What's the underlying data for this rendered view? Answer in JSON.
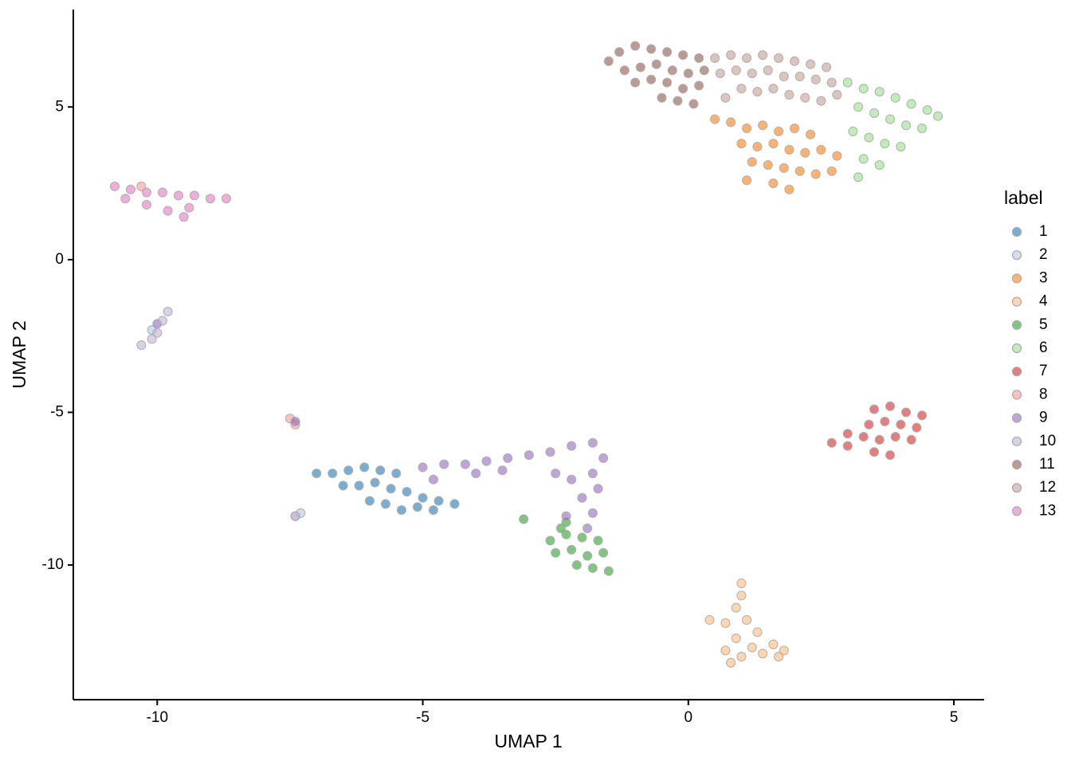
{
  "chart_data": {
    "type": "scatter",
    "xlabel": "UMAP 1",
    "ylabel": "UMAP 2",
    "legend_title": "label",
    "legend_position": "right",
    "xlim": [
      -11.58,
      5.57
    ],
    "ylim": [
      -14.41,
      8.19
    ],
    "xticks": [
      -10,
      -5,
      0,
      5
    ],
    "yticks": [
      -10,
      -5,
      0,
      5
    ],
    "series": [
      {
        "name": "1",
        "color": "#1f77b4",
        "x": [
          -7.0,
          -6.7,
          -6.4,
          -6.1,
          -5.8,
          -5.5,
          -6.5,
          -6.2,
          -5.9,
          -5.6,
          -5.3,
          -5.0,
          -4.7,
          -4.4,
          -6.0,
          -5.7,
          -5.4,
          -5.1,
          -4.8
        ],
        "y": [
          -7.0,
          -7.0,
          -6.9,
          -6.8,
          -6.9,
          -7.0,
          -7.4,
          -7.4,
          -7.3,
          -7.5,
          -7.6,
          -7.8,
          -7.9,
          -8.0,
          -7.9,
          -8.0,
          -8.2,
          -8.1,
          -8.2
        ]
      },
      {
        "name": "2",
        "color": "#aec7e8",
        "x": [
          -7.4,
          -7.3,
          -10.1
        ],
        "y": [
          -8.4,
          -8.3,
          -2.3
        ]
      },
      {
        "name": "3",
        "color": "#ff7f0e",
        "x": [
          0.5,
          0.8,
          1.1,
          1.4,
          1.7,
          2.0,
          2.3,
          1.0,
          1.3,
          1.6,
          1.9,
          2.2,
          2.5,
          2.8,
          1.2,
          1.5,
          1.8,
          2.1,
          2.4,
          2.7,
          1.6,
          1.9,
          1.1
        ],
        "y": [
          4.6,
          4.5,
          4.3,
          4.4,
          4.2,
          4.3,
          4.1,
          3.8,
          3.7,
          3.8,
          3.6,
          3.5,
          3.6,
          3.4,
          3.2,
          3.1,
          3.0,
          2.9,
          2.8,
          2.9,
          2.5,
          2.3,
          2.6
        ]
      },
      {
        "name": "4",
        "color": "#ffbb78",
        "x": [
          1.0,
          1.0,
          0.9,
          1.1,
          0.7,
          0.4,
          1.3,
          1.6,
          1.8,
          0.9,
          1.2,
          0.7,
          1.0,
          1.4,
          1.7,
          0.8
        ],
        "y": [
          -10.6,
          -11.0,
          -11.4,
          -11.8,
          -11.9,
          -11.8,
          -12.2,
          -12.6,
          -12.8,
          -12.4,
          -12.7,
          -12.8,
          -13.0,
          -12.9,
          -13.0,
          -13.2
        ]
      },
      {
        "name": "5",
        "color": "#2ca02c",
        "x": [
          -2.6,
          -2.3,
          -2.0,
          -1.7,
          -2.5,
          -2.2,
          -1.9,
          -1.6,
          -2.1,
          -1.8,
          -2.4,
          -3.1,
          -1.5,
          -2.3
        ],
        "y": [
          -9.2,
          -9.0,
          -9.1,
          -9.2,
          -9.6,
          -9.5,
          -9.7,
          -9.6,
          -10.0,
          -10.1,
          -8.8,
          -8.5,
          -10.2,
          -8.6
        ]
      },
      {
        "name": "6",
        "color": "#98df8a",
        "x": [
          3.0,
          3.3,
          3.6,
          3.9,
          4.2,
          4.5,
          4.7,
          3.2,
          3.5,
          3.8,
          4.1,
          4.4,
          3.1,
          3.4,
          3.7,
          4.0,
          3.3,
          3.6,
          3.2
        ],
        "y": [
          5.8,
          5.6,
          5.5,
          5.3,
          5.1,
          4.9,
          4.7,
          5.0,
          4.8,
          4.6,
          4.4,
          4.3,
          4.2,
          4.0,
          3.8,
          3.7,
          3.3,
          3.1,
          2.7
        ]
      },
      {
        "name": "7",
        "color": "#d62728",
        "x": [
          3.5,
          3.8,
          4.1,
          4.4,
          3.4,
          3.7,
          4.0,
          4.3,
          3.0,
          3.3,
          3.6,
          3.9,
          4.2,
          2.7,
          3.0,
          3.5,
          3.8
        ],
        "y": [
          -4.9,
          -4.8,
          -5.0,
          -5.1,
          -5.4,
          -5.3,
          -5.4,
          -5.5,
          -5.7,
          -5.8,
          -5.9,
          -5.8,
          -5.9,
          -6.0,
          -6.1,
          -6.3,
          -6.4
        ]
      },
      {
        "name": "8",
        "color": "#ff9896",
        "x": [
          -7.5,
          -7.4,
          -10.3
        ],
        "y": [
          -5.2,
          -5.4,
          2.4
        ]
      },
      {
        "name": "9",
        "color": "#9467bd",
        "x": [
          -5.0,
          -4.6,
          -4.2,
          -3.8,
          -3.4,
          -3.0,
          -2.6,
          -2.2,
          -1.8,
          -1.6,
          -1.8,
          -2.2,
          -2.5,
          -1.7,
          -2.0,
          -1.8,
          -2.3,
          -1.9,
          -4.8,
          -4.0,
          -3.5,
          -7.4,
          -10.0
        ],
        "y": [
          -6.8,
          -6.7,
          -6.7,
          -6.6,
          -6.5,
          -6.4,
          -6.3,
          -6.1,
          -6.0,
          -6.5,
          -7.0,
          -7.2,
          -7.0,
          -7.5,
          -7.8,
          -8.3,
          -8.4,
          -8.8,
          -7.2,
          -7.0,
          -6.9,
          -5.3,
          -2.1
        ]
      },
      {
        "name": "10",
        "color": "#c5b0d5",
        "x": [
          -10.3,
          -10.1,
          -10.0,
          -9.9,
          -9.8,
          -7.4
        ],
        "y": [
          -2.8,
          -2.6,
          -2.4,
          -2.0,
          -1.7,
          -8.4
        ]
      },
      {
        "name": "11",
        "color": "#8c564b",
        "x": [
          -1.5,
          -1.3,
          -1.0,
          -0.7,
          -0.4,
          -0.1,
          0.2,
          -1.2,
          -0.9,
          -0.6,
          -0.3,
          0.0,
          0.3,
          -1.0,
          -0.7,
          -0.4,
          -0.1,
          0.2,
          -0.5,
          -0.2,
          0.1
        ],
        "y": [
          6.5,
          6.8,
          7.0,
          6.9,
          6.8,
          6.7,
          6.6,
          6.2,
          6.3,
          6.4,
          6.2,
          6.1,
          6.2,
          5.8,
          5.9,
          5.8,
          5.6,
          5.7,
          5.3,
          5.2,
          5.1
        ]
      },
      {
        "name": "12",
        "color": "#c49c94",
        "x": [
          0.5,
          0.8,
          1.1,
          1.4,
          1.7,
          2.0,
          2.3,
          2.6,
          0.6,
          0.9,
          1.2,
          1.5,
          1.8,
          2.1,
          2.4,
          2.7,
          1.0,
          1.3,
          1.6,
          1.9,
          2.2,
          2.5,
          2.8,
          0.7
        ],
        "y": [
          6.6,
          6.7,
          6.6,
          6.7,
          6.6,
          6.5,
          6.4,
          6.3,
          6.1,
          6.2,
          6.1,
          6.2,
          6.0,
          6.0,
          5.9,
          5.8,
          5.6,
          5.5,
          5.6,
          5.4,
          5.3,
          5.2,
          5.4,
          5.3
        ]
      },
      {
        "name": "13",
        "color": "#e377c2",
        "x": [
          -10.8,
          -10.5,
          -10.2,
          -9.9,
          -9.6,
          -9.3,
          -9.0,
          -8.7,
          -10.6,
          -10.2,
          -9.8,
          -9.5,
          -9.4
        ],
        "y": [
          2.4,
          2.3,
          2.2,
          2.2,
          2.1,
          2.1,
          2.0,
          2.0,
          2.0,
          1.8,
          1.6,
          1.4,
          1.7
        ]
      }
    ]
  }
}
